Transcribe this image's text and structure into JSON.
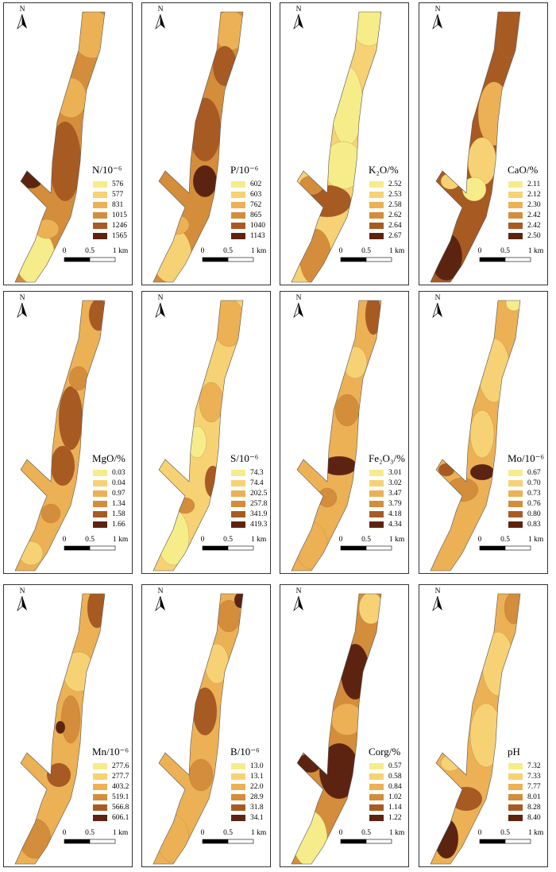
{
  "north": "N",
  "scale": [
    "0",
    "0.5",
    "1 km"
  ],
  "colors": [
    "#f6ec8a",
    "#f6d274",
    "#ecb155",
    "#d48d3a",
    "#a85a23",
    "#5c2410"
  ],
  "panels": [
    {
      "title": "N/10⁻⁶",
      "legend": [
        "576",
        "577",
        "831",
        "1015",
        "1246",
        "1565"
      ]
    },
    {
      "title": "P/10⁻⁶",
      "legend": [
        "602",
        "603",
        "762",
        "865",
        "1040",
        "1143"
      ]
    },
    {
      "title": "K₂O/%",
      "legend": [
        "2.52",
        "2.53",
        "2.58",
        "2.62",
        "2.64",
        "2.67"
      ]
    },
    {
      "title": "CaO/%",
      "legend": [
        "2.11",
        "2.12",
        "2.30",
        "2.42",
        "2.42",
        "2.50"
      ]
    },
    {
      "title": "MgO/%",
      "legend": [
        "0.03",
        "0.04",
        "0.97",
        "1.34",
        "1.58",
        "1.66"
      ]
    },
    {
      "title": "S/10⁻⁶",
      "legend": [
        "74.3",
        "74.4",
        "202.5",
        "257.8",
        "341.9",
        "419.3"
      ]
    },
    {
      "title": "Fe₂O₃/%",
      "legend": [
        "3.01",
        "3.02",
        "3.47",
        "3.79",
        "4.18",
        "4.34"
      ]
    },
    {
      "title": "Mo/10⁻⁶",
      "legend": [
        "0.67",
        "0.70",
        "0.73",
        "0.76",
        "0.80",
        "0.83"
      ]
    },
    {
      "title": "Mn/10⁻⁶",
      "legend": [
        "277.6",
        "277.7",
        "403.2",
        "519.1",
        "566.8",
        "606.1"
      ]
    },
    {
      "title": "B/10⁻⁶",
      "legend": [
        "13.0",
        "13.1",
        "22.0",
        "28.9",
        "31.8",
        "34.1"
      ]
    },
    {
      "title": "Corg/%",
      "legend": [
        "0.57",
        "0.58",
        "0.84",
        "1.02",
        "1.14",
        "1.22"
      ]
    },
    {
      "title": "pH",
      "legend": [
        "7.32",
        "7.33",
        "7.77",
        "8.01",
        "8.28",
        "8.40"
      ]
    }
  ]
}
